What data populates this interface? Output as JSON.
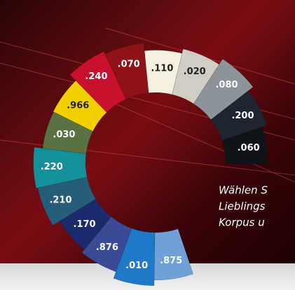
{
  "segments": [
    {
      "code": ".875",
      "color": "#6fa0d8"
    },
    {
      "code": ".010",
      "color": "#1f78c8"
    },
    {
      "code": ".876",
      "color": "#3a4a94"
    },
    {
      "code": ".170",
      "color": "#1c2a6e"
    },
    {
      "code": ".210",
      "color": "#255d7a"
    },
    {
      "code": ".220",
      "color": "#149098"
    },
    {
      "code": ".030",
      "color": "#5a7242"
    },
    {
      "code": ".966",
      "color": "#f2d000"
    },
    {
      "code": ".240",
      "color": "#c8102e"
    },
    {
      "code": ".070",
      "color": "#8f1218"
    },
    {
      "code": ".110",
      "color": "#f5f0e0"
    },
    {
      "code": ".020",
      "color": "#cfcdc4"
    },
    {
      "code": ".080",
      "color": "#8c949a"
    },
    {
      "code": ".200",
      "color": "#1e2530"
    },
    {
      "code": ".060",
      "color": "#111417"
    }
  ],
  "caption": [
    "Wählen S",
    "Lieblings",
    "Korpus u"
  ]
}
